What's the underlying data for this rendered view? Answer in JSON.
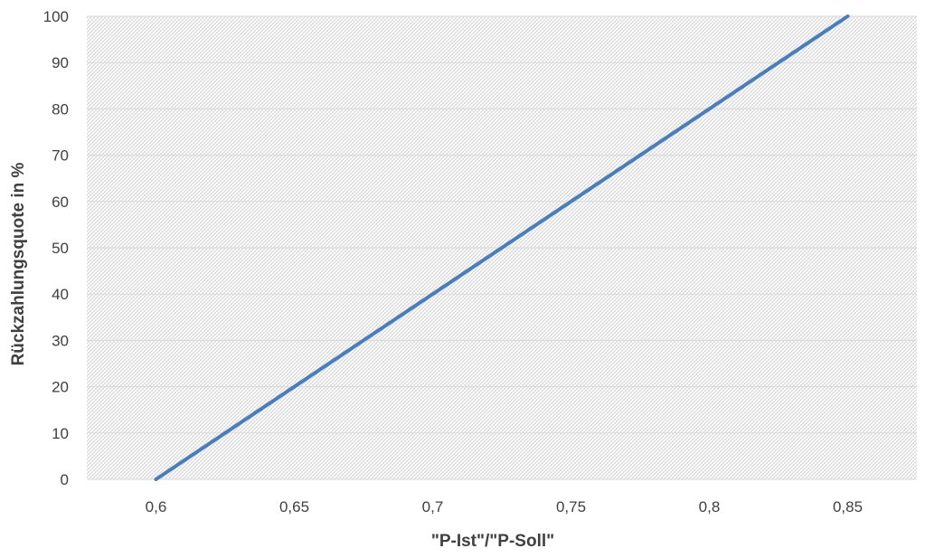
{
  "chart_data": {
    "type": "line",
    "title": "",
    "xlabel": "\"P-Ist\"/\"P-Soll\"",
    "ylabel": "Rückzahlungsquote in %",
    "xlim": [
      0.575,
      0.875
    ],
    "ylim": [
      0,
      100
    ],
    "x_ticks": [
      0.6,
      0.65,
      0.7,
      0.75,
      0.8,
      0.85
    ],
    "x_tick_labels": [
      "0,6",
      "0,65",
      "0,7",
      "0,75",
      "0,8",
      "0,85"
    ],
    "y_ticks": [
      0,
      10,
      20,
      30,
      40,
      50,
      60,
      70,
      80,
      90,
      100
    ],
    "y_tick_labels": [
      "0",
      "10",
      "20",
      "30",
      "40",
      "50",
      "60",
      "70",
      "80",
      "90",
      "100"
    ],
    "grid": true,
    "legend": "none",
    "series": [
      {
        "x": [
          0.6,
          0.85
        ],
        "y": [
          0,
          100
        ],
        "color": "#4a7ebb"
      }
    ],
    "colors": {
      "line": "#4a7ebb",
      "grid": "#d9d9d9",
      "axis_text": "#404040",
      "plot_background_pattern": "#d0d0d0"
    }
  }
}
